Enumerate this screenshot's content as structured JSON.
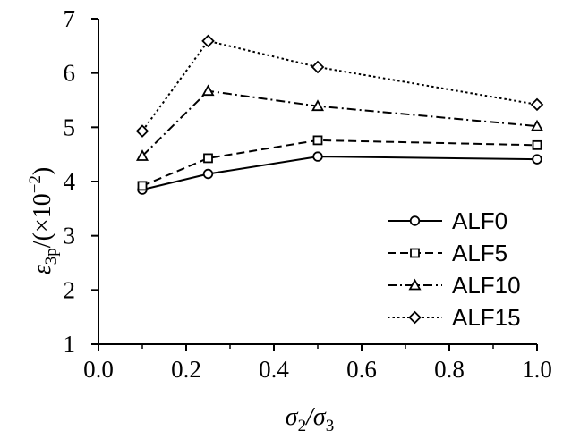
{
  "chart_data": {
    "type": "line",
    "x": [
      0.1,
      0.25,
      0.5,
      1.0
    ],
    "series": [
      {
        "name": "ALF0",
        "values": [
          3.85,
          4.14,
          4.46,
          4.41
        ],
        "marker": "circle",
        "dash": "solid"
      },
      {
        "name": "ALF5",
        "values": [
          3.92,
          4.43,
          4.76,
          4.67
        ],
        "marker": "square",
        "dash": "dashed"
      },
      {
        "name": "ALF10",
        "values": [
          4.47,
          5.67,
          5.39,
          5.02
        ],
        "marker": "triangle",
        "dash": "dashdot"
      },
      {
        "name": "ALF15",
        "values": [
          4.93,
          6.59,
          6.11,
          5.42
        ],
        "marker": "diamond",
        "dash": "dotted"
      }
    ],
    "xlim": [
      0.0,
      1.0
    ],
    "ylim": [
      1,
      7
    ],
    "xticks": [
      "0.0",
      "0.2",
      "0.4",
      "0.6",
      "0.8",
      "1.0"
    ],
    "yticks": [
      "1",
      "2",
      "3",
      "4",
      "5",
      "6",
      "7"
    ],
    "xlabel": {
      "main": "σ",
      "sub1": "2",
      "mid": "/σ",
      "sub2": "3"
    },
    "ylabel": {
      "main": "ε",
      "sub": "3p",
      "rest": "/(×10",
      "sup": "−2",
      "close": ")"
    },
    "grid": false,
    "legend": "bottom-right"
  }
}
